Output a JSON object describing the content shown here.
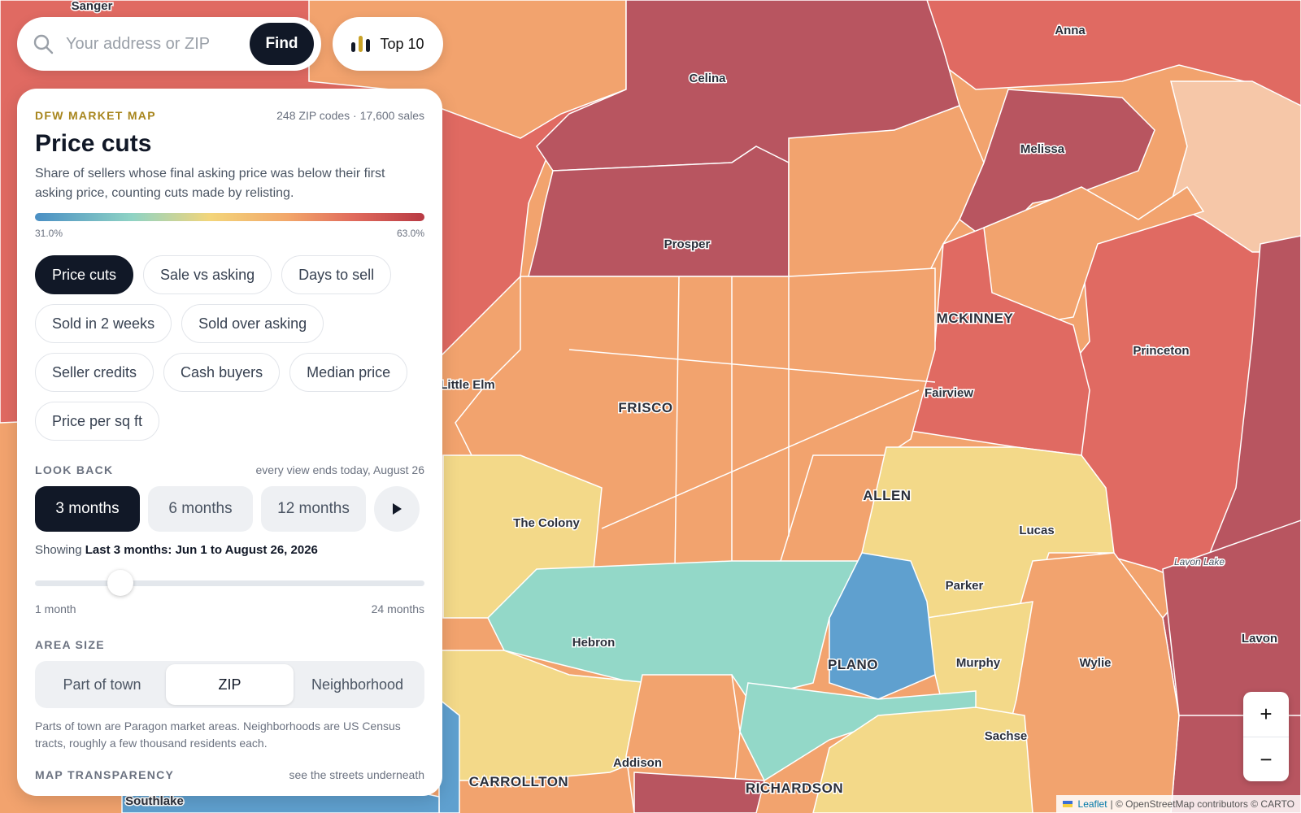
{
  "search": {
    "placeholder": "Your address or ZIP",
    "find_label": "Find"
  },
  "top10": {
    "label": "Top 10"
  },
  "panel": {
    "eyebrow": "DFW MARKET MAP",
    "meta": "248 ZIP codes · 17,600 sales",
    "title": "Price cuts",
    "description": "Share of sellers whose final asking price was below their first asking price, counting cuts made by relisting.",
    "legend_min": "31.0%",
    "legend_max": "63.0%",
    "metrics": [
      {
        "label": "Price cuts",
        "active": true
      },
      {
        "label": "Sale vs asking",
        "active": false
      },
      {
        "label": "Days to sell",
        "active": false
      },
      {
        "label": "Sold in 2 weeks",
        "active": false
      },
      {
        "label": "Sold over asking",
        "active": false
      },
      {
        "label": "Seller credits",
        "active": false
      },
      {
        "label": "Cash buyers",
        "active": false
      },
      {
        "label": "Median price",
        "active": false
      },
      {
        "label": "Price per sq ft",
        "active": false
      }
    ],
    "lookback": {
      "label": "LOOK BACK",
      "note": "every view ends today, August 26",
      "options": [
        "3 months",
        "6 months",
        "12 months"
      ],
      "selected": "3 months",
      "showing_prefix": "Showing",
      "showing_value": "Last 3 months: Jun 1 to August 26, 2026",
      "slider_min_label": "1 month",
      "slider_max_label": "24 months",
      "slider_fraction": 0.2
    },
    "area_size": {
      "label": "AREA SIZE",
      "options": [
        "Part of town",
        "ZIP",
        "Neighborhood"
      ],
      "selected": "ZIP",
      "note": "Parts of town are Paragon market areas. Neighborhoods are US Census tracts, roughly a few thousand residents each."
    },
    "transparency": {
      "label": "MAP TRANSPARENCY",
      "note": "see the streets underneath"
    }
  },
  "map": {
    "labels": [
      "Sanger",
      "Anna",
      "Celina",
      "Melissa",
      "Prosper",
      "MCKINNEY",
      "Princeton",
      "Little Elm",
      "Fairview",
      "FRISCO",
      "ALLEN",
      "The Colony",
      "Lucas",
      "Lavon Lake",
      "Parker",
      "Hebron",
      "PLANO",
      "Murphy",
      "Wylie",
      "Lavon",
      "Sachse",
      "Addison",
      "CARROLLTON",
      "RICHARDSON",
      "Southlake"
    ],
    "colors": {
      "high": "#b85560",
      "red": "#e06a62",
      "orange": "#f2a36e",
      "yellow": "#f3d989",
      "teal": "#93d8c8",
      "blue": "#5fa0cf",
      "pale": "#f6c7a8"
    }
  },
  "zoom": {
    "in_label": "+",
    "out_label": "−"
  },
  "attribution": {
    "leaflet": "Leaflet",
    "rest": "| © OpenStreetMap contributors © CARTO"
  }
}
